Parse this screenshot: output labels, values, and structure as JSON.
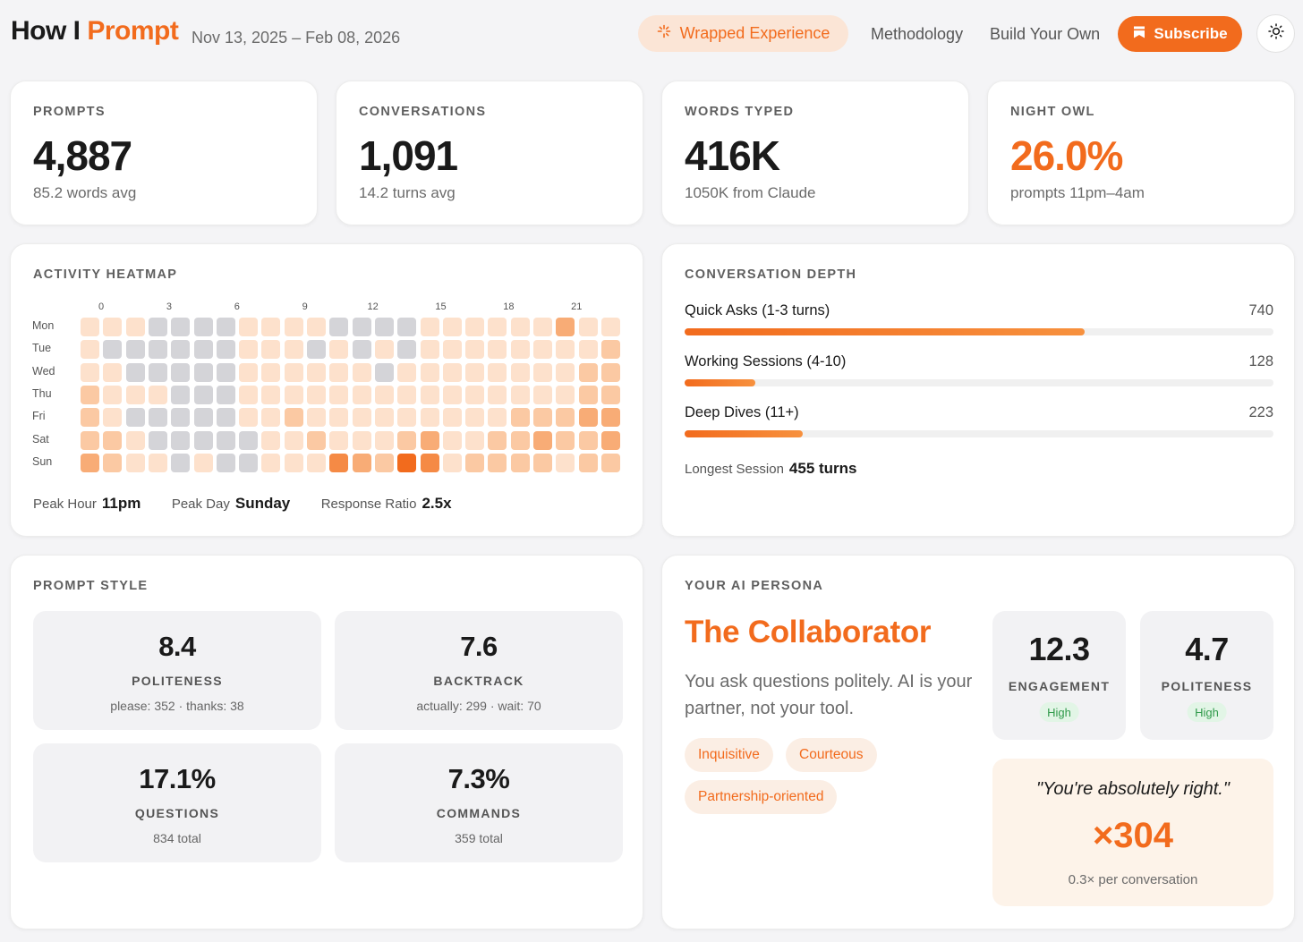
{
  "header": {
    "brand_part1": "How I",
    "brand_part2": "Prompt",
    "date_range": "Nov 13, 2025 – Feb 08, 2026",
    "wrapped_label": "Wrapped Experience",
    "methodology_label": "Methodology",
    "build_label": "Build Your Own",
    "subscribe_label": "Subscribe"
  },
  "stats": {
    "prompts": {
      "label": "PROMPTS",
      "value": "4,887",
      "sub": "85.2 words avg"
    },
    "conversations": {
      "label": "CONVERSATIONS",
      "value": "1,091",
      "sub": "14.2 turns avg"
    },
    "words": {
      "label": "WORDS TYPED",
      "value": "416K",
      "sub": "1050K from Claude"
    },
    "night_owl": {
      "label": "NIGHT OWL",
      "value": "26.0%",
      "sub": "prompts 11pm–4am"
    }
  },
  "heatmap": {
    "label": "ACTIVITY HEATMAP",
    "hour_ticks": [
      "0",
      "3",
      "6",
      "9",
      "12",
      "15",
      "18",
      "21"
    ],
    "days": [
      "Mon",
      "Tue",
      "Wed",
      "Thu",
      "Fri",
      "Sat",
      "Sun"
    ],
    "levels": [
      [
        1,
        1,
        1,
        0,
        0,
        0,
        0,
        1,
        1,
        1,
        1,
        0,
        0,
        0,
        0,
        1,
        1,
        1,
        1,
        1,
        1,
        3,
        1,
        1
      ],
      [
        1,
        0,
        0,
        0,
        0,
        0,
        0,
        1,
        1,
        1,
        0,
        1,
        0,
        1,
        0,
        1,
        1,
        1,
        1,
        1,
        1,
        1,
        1,
        2
      ],
      [
        1,
        1,
        0,
        0,
        0,
        0,
        0,
        1,
        1,
        1,
        1,
        1,
        1,
        0,
        1,
        1,
        1,
        1,
        1,
        1,
        1,
        1,
        2,
        2
      ],
      [
        2,
        1,
        1,
        1,
        0,
        0,
        0,
        1,
        1,
        1,
        1,
        1,
        1,
        1,
        1,
        1,
        1,
        1,
        1,
        1,
        1,
        1,
        2,
        2
      ],
      [
        2,
        1,
        0,
        0,
        0,
        0,
        0,
        1,
        1,
        2,
        1,
        1,
        1,
        1,
        1,
        1,
        1,
        1,
        1,
        2,
        2,
        2,
        3,
        3
      ],
      [
        2,
        2,
        1,
        0,
        0,
        0,
        0,
        0,
        1,
        1,
        2,
        1,
        1,
        1,
        2,
        3,
        1,
        1,
        2,
        2,
        3,
        2,
        2,
        3
      ],
      [
        3,
        2,
        1,
        1,
        0,
        1,
        0,
        0,
        1,
        1,
        1,
        4,
        3,
        2,
        5,
        4,
        1,
        2,
        2,
        2,
        2,
        1,
        2,
        2
      ]
    ],
    "peak_hour_label": "Peak Hour",
    "peak_hour": "11pm",
    "peak_day_label": "Peak Day",
    "peak_day": "Sunday",
    "ratio_label": "Response Ratio",
    "ratio": "2.5x",
    "colors": {
      "none": "#d4d4d8",
      "l1": "#fde1cc",
      "l2": "#fbc9a3",
      "l3": "#f8ac76",
      "l4": "#f58a45",
      "l5": "#f26b1d"
    }
  },
  "depth": {
    "label": "CONVERSATION DEPTH",
    "rows": [
      {
        "name": "Quick Asks (1-3 turns)",
        "count": "740",
        "fraction": 0.68
      },
      {
        "name": "Working Sessions (4-10)",
        "count": "128",
        "fraction": 0.12
      },
      {
        "name": "Deep Dives (11+)",
        "count": "223",
        "fraction": 0.2
      }
    ],
    "longest_label": "Longest Session",
    "longest_value": "455 turns"
  },
  "style": {
    "label": "PROMPT STYLE",
    "tiles": [
      {
        "value": "8.4",
        "label": "POLITENESS",
        "sub": "please: 352 · thanks: 38"
      },
      {
        "value": "7.6",
        "label": "BACKTRACK",
        "sub": "actually: 299 · wait: 70"
      },
      {
        "value": "17.1%",
        "label": "QUESTIONS",
        "sub": "834 total"
      },
      {
        "value": "7.3%",
        "label": "COMMANDS",
        "sub": "359 total"
      }
    ]
  },
  "persona": {
    "label": "YOUR AI PERSONA",
    "name": "The Collaborator",
    "description": "You ask questions politely. AI is your partner, not your tool.",
    "tags": [
      "Inquisitive",
      "Courteous",
      "Partnership-oriented"
    ],
    "metrics": [
      {
        "value": "12.3",
        "label": "ENGAGEMENT",
        "badge": "High"
      },
      {
        "value": "4.7",
        "label": "POLITENESS",
        "badge": "High"
      }
    ],
    "quote": "\"You're absolutely right.\"",
    "quote_count": "×304",
    "quote_sub": "0.3× per conversation"
  }
}
